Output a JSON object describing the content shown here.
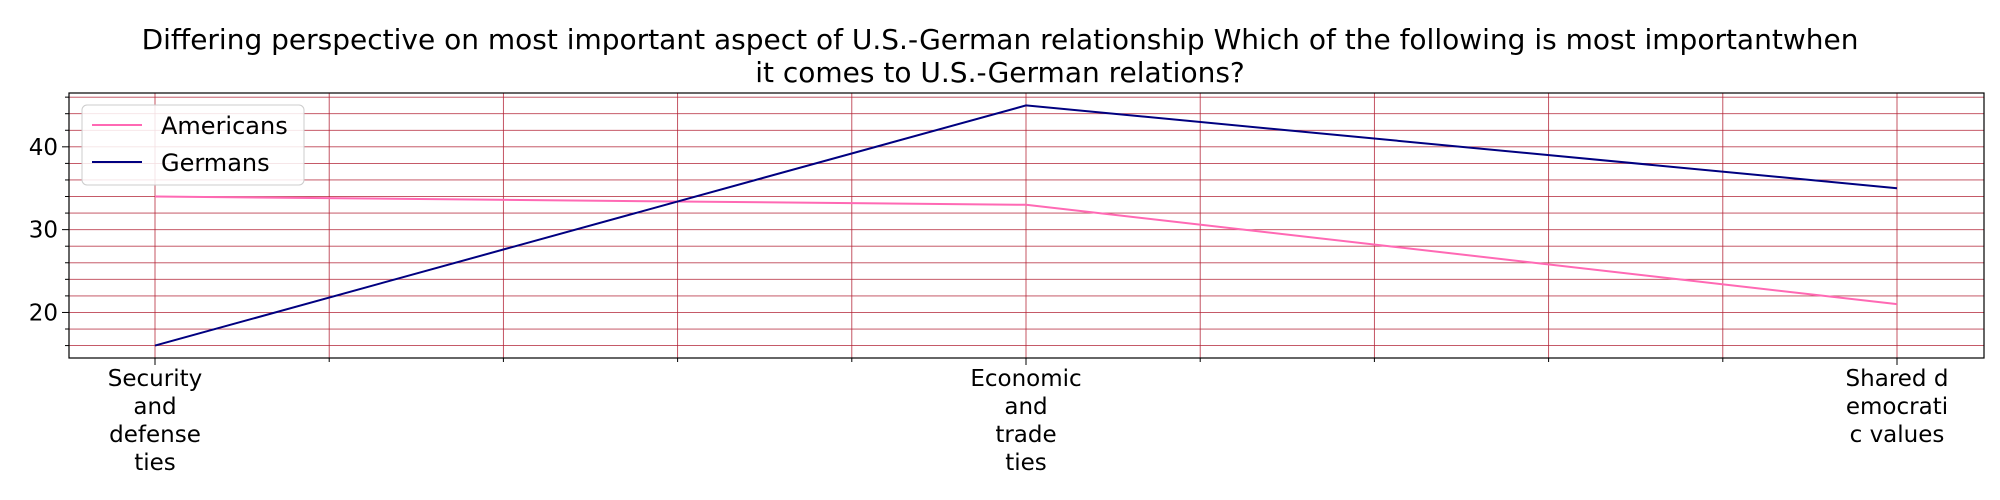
{
  "chart_data": {
    "type": "line",
    "title_lines": [
      "Differing perspective on most important aspect of U.S.-German relationship Which of the following is most importantwhen",
      "it comes to U.S.-German relations?"
    ],
    "categories": [
      "Security and defense ties",
      "Economic and trade ties",
      "Shared democratic values"
    ],
    "category_label_lines": [
      [
        "Security",
        "and",
        "defense",
        "ties"
      ],
      [
        "Economic",
        "and",
        "trade",
        "ties"
      ],
      [
        "Shared d",
        "emocrati",
        "c values"
      ]
    ],
    "series": [
      {
        "name": "Americans",
        "values": [
          34,
          33,
          21
        ],
        "color": "#ff69b4"
      },
      {
        "name": "Germans",
        "values": [
          16,
          45,
          35
        ],
        "color": "#000080"
      }
    ],
    "ylim": [
      14.5,
      46.5
    ],
    "y_major_ticks": [
      20,
      30,
      40
    ],
    "y_minor_step": 2,
    "x_minor_divisions": 5,
    "grid": true,
    "grid_color": "#b22234",
    "legend_position": "top-left"
  }
}
